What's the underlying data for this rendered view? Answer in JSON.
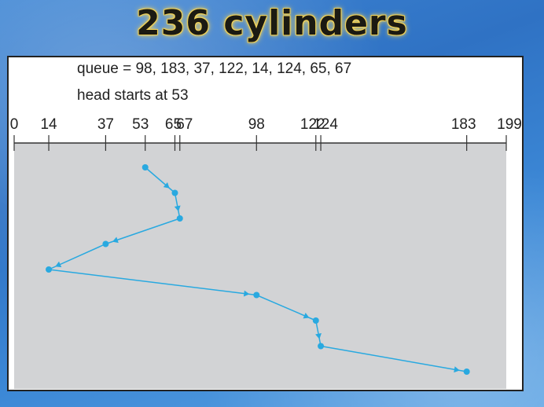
{
  "slide": {
    "title": "236 cylinders"
  },
  "diagram": {
    "queue_text": "queue = 98, 183, 37, 122, 14, 124, 65, 67",
    "head_text": "head starts at 53",
    "axis_min": 0,
    "axis_max": 199,
    "ticks": [
      0,
      14,
      37,
      53,
      65,
      67,
      98,
      122,
      124,
      183,
      199
    ],
    "tick_labels": [
      "0",
      "14",
      "37",
      "53",
      "65",
      "67",
      "98",
      "122",
      "124",
      "183",
      "199"
    ],
    "path": [
      53,
      65,
      67,
      37,
      14,
      98,
      122,
      124,
      183
    ],
    "colors": {
      "line": "#29a9e0",
      "plot_bg": "#d2d3d5"
    }
  }
}
